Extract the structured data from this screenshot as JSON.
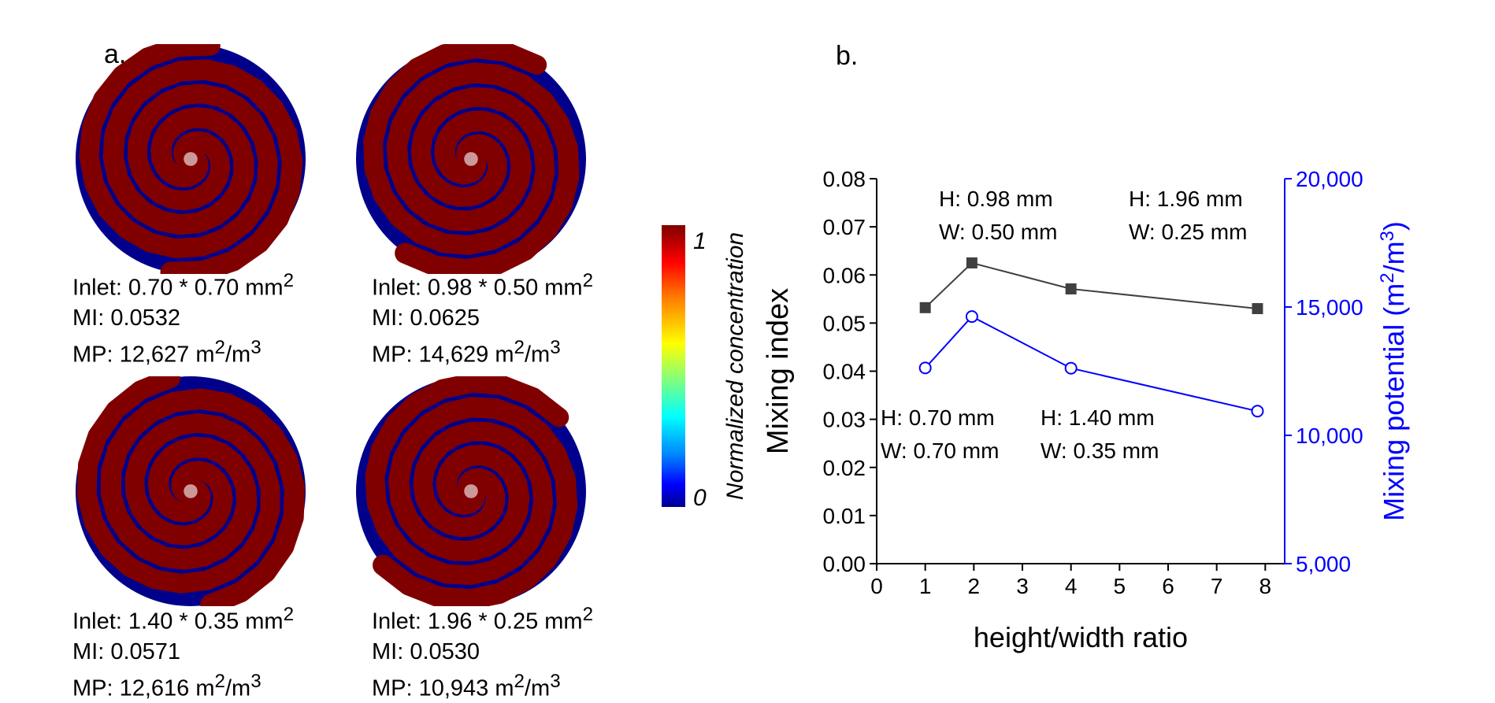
{
  "panel_a": {
    "label": "a.",
    "colorbar": {
      "title": "Normalized concentration",
      "max_label": "1",
      "min_label": "0"
    },
    "cases": [
      {
        "inlet": "Inlet: 0.70 * 0.70 mm",
        "inlet_sup": "2",
        "mi": "MI: 0.0532",
        "mp": "MP: 12,627 m",
        "mp_sup1": "2",
        "mp_mid": "/m",
        "mp_sup2": "3"
      },
      {
        "inlet": "Inlet: 0.98 * 0.50 mm",
        "inlet_sup": "2",
        "mi": "MI: 0.0625",
        "mp": "MP: 14,629 m",
        "mp_sup1": "2",
        "mp_mid": "/m",
        "mp_sup2": "3"
      },
      {
        "inlet": "Inlet: 1.40 * 0.35 mm",
        "inlet_sup": "2",
        "mi": "MI: 0.0571",
        "mp": "MP: 12,616 m",
        "mp_sup1": "2",
        "mp_mid": "/m",
        "mp_sup2": "3"
      },
      {
        "inlet": "Inlet: 1.96 * 0.25 mm",
        "inlet_sup": "2",
        "mi": "MI: 0.0530",
        "mp": "MP: 10,943 m",
        "mp_sup1": "2",
        "mp_mid": "/m",
        "mp_sup2": "3"
      }
    ],
    "colors": {
      "high": "#800000",
      "low": "#00008b"
    }
  },
  "chart_data": {
    "type": "line",
    "panel_label": "b.",
    "xlabel": "height/width ratio",
    "ylabel": "Mixing index",
    "y2label": "Mixing potential (m",
    "y2label_sup1": "2",
    "y2label_mid": "/m",
    "y2label_sup2": "3",
    "y2label_end": ")",
    "xlim": [
      0,
      8.4
    ],
    "ylim": [
      0,
      0.08
    ],
    "y2lim": [
      5000,
      20000
    ],
    "x_ticks": [
      "0",
      "1",
      "2",
      "3",
      "4",
      "5",
      "6",
      "7",
      "8"
    ],
    "y_ticks": [
      "0.00",
      "0.01",
      "0.02",
      "0.03",
      "0.04",
      "0.05",
      "0.06",
      "0.07",
      "0.08"
    ],
    "y2_ticks": [
      "5,000",
      "10,000",
      "15,000",
      "20,000"
    ],
    "series": [
      {
        "axis": "left",
        "color": "#404040",
        "marker": "filled-square",
        "x": [
          1.0,
          1.96,
          4.0,
          7.84
        ],
        "values": [
          0.0532,
          0.0625,
          0.0571,
          0.053
        ]
      },
      {
        "axis": "right",
        "color": "#0000ff",
        "marker": "open-circle",
        "x": [
          1.0,
          1.96,
          4.0,
          7.84
        ],
        "values": [
          12627,
          14629,
          12616,
          10943
        ]
      }
    ],
    "annotations": [
      {
        "l1": "H: 0.98 mm",
        "l2": "W: 0.50 mm"
      },
      {
        "l1": "H: 1.96 mm",
        "l2": "W: 0.25 mm"
      },
      {
        "l1": "H: 0.70 mm",
        "l2": "W: 0.70 mm"
      },
      {
        "l1": "H: 1.40 mm",
        "l2": "W: 0.35 mm"
      }
    ],
    "grid": false,
    "colors": {
      "left_axis": "#000000",
      "right_axis": "#0000ff"
    }
  }
}
